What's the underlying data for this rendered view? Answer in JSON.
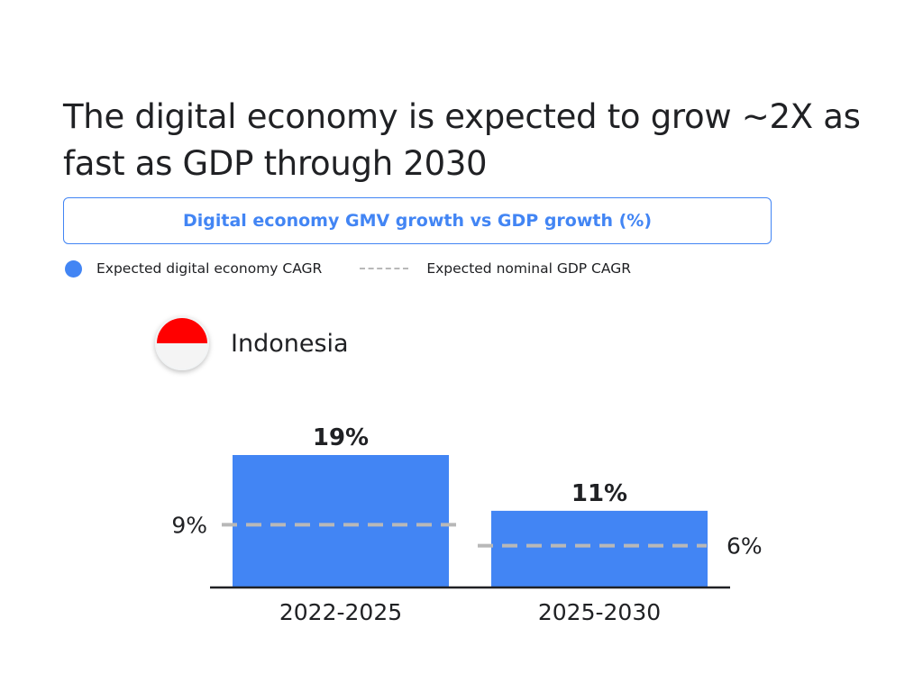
{
  "headline": "The digital economy is expected to grow ~2X as fast as GDP through 2030",
  "subtitle": "Digital economy GMV growth vs GDP growth (%)",
  "legend": {
    "digital": "Expected digital economy CAGR",
    "gdp": "Expected nominal GDP CAGR"
  },
  "country": {
    "name": "Indonesia",
    "flag_top_color": "#ff0000",
    "flag_bottom_color": "#f4f4f4"
  },
  "colors": {
    "bar": "#4285f4",
    "gdp_line": "#b8b8b8",
    "title_text": "#202124",
    "accent": "#4285f4"
  },
  "chart_data": {
    "type": "bar",
    "categories": [
      "2022-2025",
      "2025-2030"
    ],
    "series": [
      {
        "name": "Expected digital economy CAGR",
        "values": [
          19,
          11
        ]
      },
      {
        "name": "Expected nominal GDP CAGR",
        "values": [
          9,
          6
        ]
      }
    ],
    "bar_labels": [
      "19%",
      "11%"
    ],
    "gdp_labels": [
      "9%",
      "6%"
    ],
    "ylim": [
      0,
      19
    ],
    "grid": false,
    "legend_position": "top-left"
  }
}
